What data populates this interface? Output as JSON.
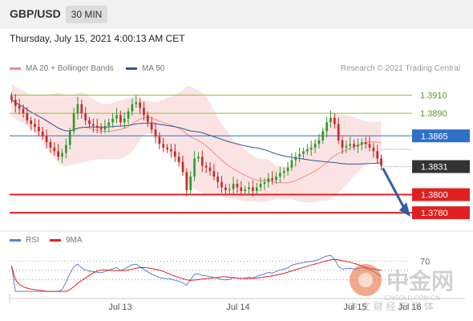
{
  "header": {
    "symbol": "GBP/USD",
    "timeframe": "30 MIN"
  },
  "datetime": "Thursday, July 15, 2021 4:00:13 AM CET",
  "legend": {
    "ma20": {
      "label": "MA 20 + Bollinger Bands",
      "color": "#f08c8c"
    },
    "ma50": {
      "label": "MA 50",
      "color": "#2f5597"
    }
  },
  "credit": "Research © 2021 Trading Central",
  "rsi_legend": {
    "rsi": {
      "label": "RSI",
      "color": "#5b7fd6"
    },
    "ma9": {
      "label": "9MA",
      "color": "#e02020"
    }
  },
  "watermark": {
    "name": "中金网",
    "domain": "CNGOLD.COM.CN",
    "slogan": "中 文 财 经 新 媒 体"
  },
  "chart_data": [
    {
      "type": "candlestick",
      "ylim": [
        1.3765,
        1.393
      ],
      "x_ticks": [
        "Jul 13",
        "Jul 14",
        "Jul 15",
        "Jul 16"
      ],
      "levels": [
        {
          "value": 1.391,
          "label": "1.3910",
          "kind": "resistance",
          "color": "#8bbf3f"
        },
        {
          "value": 1.389,
          "label": "1.3890",
          "kind": "resistance",
          "color": "#8bbf3f"
        },
        {
          "value": 1.3865,
          "label": "1.3865",
          "kind": "pivot",
          "color": "#2f6fc8"
        },
        {
          "value": 1.3831,
          "label": "1.3831",
          "kind": "last-price",
          "color": "#333333"
        },
        {
          "value": 1.38,
          "label": "1.3800",
          "kind": "support",
          "color": "#e02020"
        },
        {
          "value": 1.378,
          "label": "1.3780",
          "kind": "support",
          "color": "#e02020"
        }
      ],
      "target_arrow": {
        "from": 1.3831,
        "to": 1.378,
        "color": "#2f5fa8"
      },
      "close": [
        1.3905,
        1.3898,
        1.3895,
        1.389,
        1.3882,
        1.3878,
        1.3875,
        1.387,
        1.3865,
        1.3858,
        1.3852,
        1.3848,
        1.3842,
        1.3846,
        1.3855,
        1.387,
        1.389,
        1.39,
        1.389,
        1.3882,
        1.3878,
        1.3876,
        1.3874,
        1.3872,
        1.3876,
        1.388,
        1.3884,
        1.3888,
        1.388,
        1.3884,
        1.3892,
        1.39,
        1.3902,
        1.3896,
        1.3888,
        1.388,
        1.3872,
        1.3864,
        1.3856,
        1.3852,
        1.385,
        1.3848,
        1.3842,
        1.3836,
        1.3825,
        1.3805,
        1.382,
        1.384,
        1.3842,
        1.3832,
        1.383,
        1.3826,
        1.382,
        1.3814,
        1.3808,
        1.3805,
        1.3806,
        1.3812,
        1.3808,
        1.3804,
        1.3806,
        1.3808,
        1.3804,
        1.3808,
        1.3812,
        1.3814,
        1.3818,
        1.3816,
        1.382,
        1.3824,
        1.3826,
        1.383,
        1.3838,
        1.3842,
        1.3845,
        1.3848,
        1.385,
        1.3852,
        1.3856,
        1.386,
        1.387,
        1.388,
        1.3885,
        1.3878,
        1.386,
        1.3852,
        1.3854,
        1.3856,
        1.3853,
        1.3855,
        1.3858,
        1.3856,
        1.3852,
        1.3848,
        1.384,
        1.3832
      ]
    },
    {
      "type": "line",
      "title": "RSI",
      "y_ticks": [
        70
      ],
      "ylim": [
        0,
        100
      ]
    }
  ]
}
